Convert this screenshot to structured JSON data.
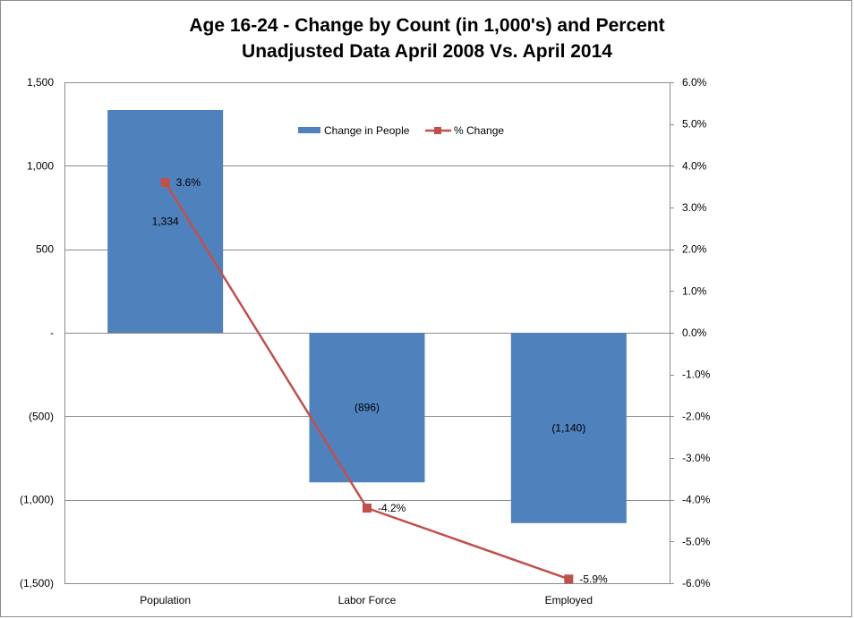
{
  "chart_data": {
    "type": "bar",
    "title_lines": [
      "Age 16-24 - Change by Count (in 1,000's) and Percent",
      "Unadjusted Data April 2008 Vs. April 2014"
    ],
    "categories": [
      "Population",
      "Labor Force",
      "Employed"
    ],
    "series": [
      {
        "name": "Change in People",
        "type": "bar",
        "axis": "left",
        "values": [
          1334,
          -896,
          -1140
        ],
        "labels": [
          "1,334",
          "(896)",
          "(1,140)"
        ],
        "color": "#4f81bd"
      },
      {
        "name": "% Change",
        "type": "line",
        "axis": "right",
        "values": [
          3.6,
          -4.2,
          -5.9
        ],
        "labels": [
          "3.6%",
          "-4.2%",
          "-5.9%"
        ],
        "color": "#c0504d"
      }
    ],
    "y_left": {
      "min": -1500,
      "max": 1500,
      "ticks": [
        1500,
        1000,
        500,
        0,
        -500,
        -1000,
        -1500
      ],
      "tick_labels": [
        "1,500",
        "1,000",
        "500",
        "-",
        "(500)",
        "(1,000)",
        "(1,500)"
      ]
    },
    "y_right": {
      "min": -6,
      "max": 6,
      "ticks": [
        6,
        5,
        4,
        3,
        2,
        1,
        0,
        -1,
        -2,
        -3,
        -4,
        -5,
        -6
      ],
      "tick_labels": [
        "6.0%",
        "5.0%",
        "4.0%",
        "3.0%",
        "2.0%",
        "1.0%",
        "0.0%",
        "-1.0%",
        "-2.0%",
        "-3.0%",
        "-4.0%",
        "-5.0%",
        "-6.0%"
      ]
    },
    "grid": true,
    "legend_position": "top-center"
  }
}
